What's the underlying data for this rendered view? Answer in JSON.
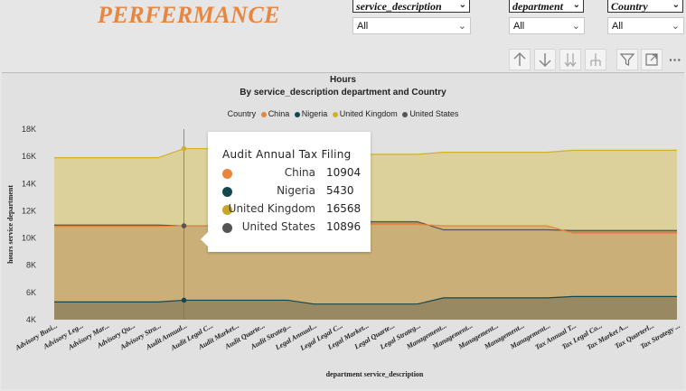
{
  "page": {
    "title": "PERFERMANCE"
  },
  "slicers": [
    {
      "label": "service_description",
      "value": "All"
    },
    {
      "label": "department",
      "value": "All"
    },
    {
      "label": "Country",
      "value": "All"
    }
  ],
  "toolbar": {
    "icons": [
      "arrow-up-icon",
      "arrow-down-icon",
      "double-arrow-down-icon",
      "expand-hierarchy-icon",
      "filter-icon",
      "focus-mode-icon",
      "more-options-icon"
    ],
    "more_label": "···"
  },
  "chart_data": {
    "type": "area",
    "title": "Hours",
    "subtitle": "By service_description  department and Country",
    "xlabel": "department service_description",
    "ylabel": "hours service department",
    "ylim": [
      4000,
      18000
    ],
    "yticks": [
      "4K",
      "6K",
      "8K",
      "10K",
      "12K",
      "14K",
      "16K",
      "18K"
    ],
    "legend_title": "Country",
    "legend_position": "top",
    "categories": [
      "Advisory Busi...",
      "Advisory Leg...",
      "Advisory Mar...",
      "Advisory Qu...",
      "Advisory Stra...",
      "Audit Annual...",
      "Audit Legal C...",
      "Audit Market...",
      "Audit Quarte...",
      "Audit Strateg...",
      "Legal Annual...",
      "Legal Legal C...",
      "Legal Market...",
      "Legal Quarte...",
      "Legal Strateg...",
      "Management...",
      "Management...",
      "Management...",
      "Management...",
      "Management...",
      "Tax Annual T...",
      "Tax Legal Co...",
      "Tax Market A...",
      "Tax Quarterl...",
      "Tax Strategy ..."
    ],
    "series": [
      {
        "name": "China",
        "color": "#e8853e",
        "values": [
          10850,
          10850,
          10850,
          10850,
          10850,
          10904,
          10904,
          10904,
          10904,
          10904,
          11000,
          11000,
          11000,
          11000,
          11000,
          10900,
          10900,
          10900,
          10900,
          10900,
          10350,
          10350,
          10350,
          10350,
          10350
        ]
      },
      {
        "name": "Nigeria",
        "color": "#13474e",
        "values": [
          5300,
          5300,
          5300,
          5300,
          5300,
          5430,
          5430,
          5430,
          5430,
          5430,
          5150,
          5150,
          5150,
          5150,
          5150,
          5600,
          5600,
          5600,
          5600,
          5600,
          5700,
          5700,
          5700,
          5700,
          5700
        ]
      },
      {
        "name": "United Kingdom",
        "color": "#d3b02a",
        "values": [
          15900,
          15900,
          15900,
          15900,
          15900,
          16568,
          16568,
          16568,
          16568,
          16568,
          16150,
          16150,
          16150,
          16150,
          16150,
          16300,
          16300,
          16300,
          16300,
          16300,
          16450,
          16450,
          16450,
          16450,
          16450
        ]
      },
      {
        "name": "United States",
        "color": "#555555",
        "values": [
          10950,
          10950,
          10950,
          10950,
          10950,
          10896,
          10896,
          10896,
          10896,
          10896,
          11200,
          11200,
          11200,
          11200,
          11200,
          10600,
          10600,
          10600,
          10600,
          10600,
          10550,
          10550,
          10550,
          10550,
          10550
        ]
      }
    ]
  },
  "tooltip": {
    "title": "Audit Annual Tax Filing",
    "rows": [
      {
        "name": "China",
        "value": "10904",
        "color": "#e8853e"
      },
      {
        "name": "Nigeria",
        "value": "5430",
        "color": "#13474e"
      },
      {
        "name": "United Kingdom",
        "value": "16568",
        "color": "#c9a62a"
      },
      {
        "name": "United States",
        "value": "10896",
        "color": "#555555"
      }
    ]
  }
}
